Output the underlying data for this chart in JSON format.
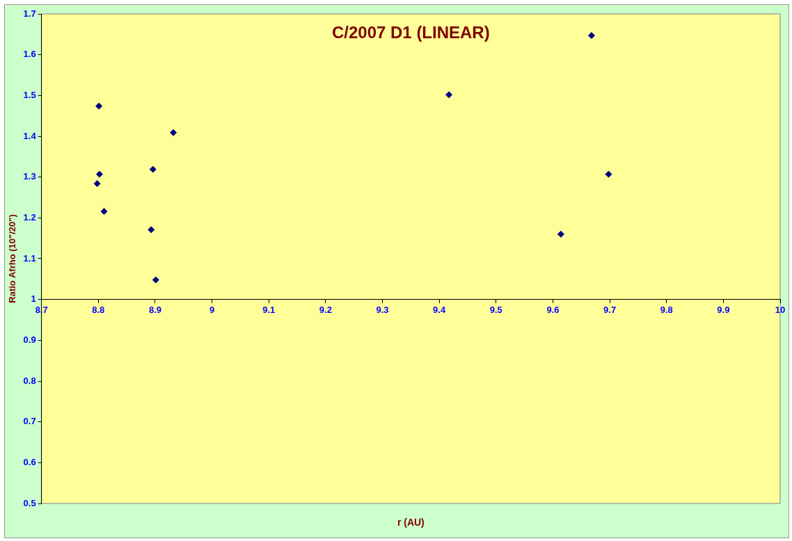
{
  "chart_data": {
    "type": "scatter",
    "title": "C/2007 D1 (LINEAR)",
    "xlabel": "r (AU)",
    "ylabel": "Ratio Afrho (10\"/20\")",
    "x": [
      8.801,
      8.802,
      8.798,
      8.81,
      8.893,
      8.896,
      8.901,
      8.932,
      9.417,
      9.614,
      9.668,
      9.698
    ],
    "series": [
      {
        "color": "#000080",
        "values": [
          1.474,
          1.307,
          1.284,
          1.216,
          1.171,
          1.319,
          1.048,
          1.409,
          1.502,
          1.16,
          1.647,
          1.307
        ]
      }
    ],
    "xlim": [
      8.7,
      10
    ],
    "xticks": [
      8.7,
      8.8,
      8.9,
      9,
      9.1,
      9.2,
      9.3,
      9.4,
      9.5,
      9.6,
      9.7,
      9.8,
      9.9,
      10
    ],
    "ylim": [
      0.5,
      1.7
    ],
    "yticks": [
      0.5,
      0.6,
      0.7,
      0.8,
      0.9,
      1,
      1.1,
      1.2,
      1.3,
      1.4,
      1.5,
      1.6,
      1.7
    ],
    "grid": false,
    "legend": false,
    "marker": "diamond"
  }
}
